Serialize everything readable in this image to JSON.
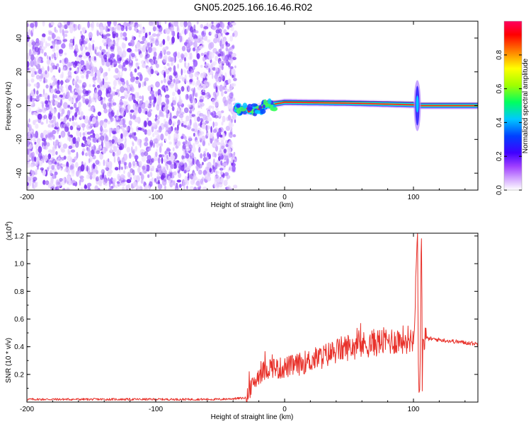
{
  "title": "GN05.2025.166.16.46.R02",
  "chart_data": [
    {
      "type": "heatmap",
      "xlabel": "Height of straight line (km)",
      "ylabel": "Frequency (Hz)",
      "xlim": [
        -200,
        150
      ],
      "ylim": [
        -50,
        50
      ],
      "xticks": [
        -200,
        -100,
        0,
        100
      ],
      "yticks": [
        -40,
        -20,
        0,
        20,
        40
      ],
      "colorbar": {
        "label": "Normalized spectral amplitude",
        "range": [
          0,
          1
        ],
        "ticks": [
          0.0,
          0.2,
          0.4,
          0.6,
          0.8
        ],
        "tick_labels": [
          "0.0",
          "0.2",
          "0.4",
          "0.6",
          "0.8"
        ],
        "colormap": [
          "#ffffff",
          "#a040ff",
          "#4000ff",
          "#0040ff",
          "#00c8ff",
          "#00ff60",
          "#a0ff00",
          "#ffff00",
          "#ff8000",
          "#ff0000",
          "#ff0060"
        ]
      },
      "features": {
        "noise_region_x": [
          -200,
          -38
        ],
        "signal_track": [
          {
            "x": -38,
            "y": -2
          },
          {
            "x": -25,
            "y": -3
          },
          {
            "x": -15,
            "y": 0
          },
          {
            "x": 0,
            "y": 2
          },
          {
            "x": 50,
            "y": 1.5
          },
          {
            "x": 100,
            "y": 0.5
          },
          {
            "x": 105,
            "y": 0
          },
          {
            "x": 150,
            "y": 0
          }
        ],
        "spike_x": 103
      }
    },
    {
      "type": "line",
      "xlabel": "Height of straight line (km)",
      "ylabel": "SNR (10 * v/v)",
      "y_multiplier": "(x10",
      "y_multiplier_exp": "4",
      "xlim": [
        -200,
        150
      ],
      "ylim": [
        0,
        1.22
      ],
      "xticks": [
        -200,
        -100,
        0,
        100
      ],
      "yticks": [
        0.2,
        0.4,
        0.6,
        0.8,
        1.0,
        1.2
      ],
      "ytick_labels": [
        "0.2",
        "0.4",
        "0.6",
        "0.8",
        "1.0",
        "1.2"
      ],
      "color": "#e8312a",
      "series": [
        {
          "x": [
            -200,
            -150,
            -100,
            -50,
            -30,
            -25,
            -20,
            -15,
            -10,
            -5,
            0,
            10,
            20,
            30,
            40,
            50,
            60,
            70,
            80,
            90,
            100,
            103,
            104,
            105,
            106,
            107,
            108,
            110,
            120,
            130,
            140,
            150
          ],
          "values": [
            0.02,
            0.02,
            0.02,
            0.02,
            0.03,
            0.12,
            0.2,
            0.23,
            0.26,
            0.24,
            0.25,
            0.27,
            0.3,
            0.33,
            0.37,
            0.4,
            0.41,
            0.43,
            0.44,
            0.45,
            0.46,
            1.22,
            0.06,
            0.1,
            1.18,
            0.45,
            0.46,
            0.46,
            0.45,
            0.44,
            0.43,
            0.42
          ]
        }
      ]
    }
  ]
}
